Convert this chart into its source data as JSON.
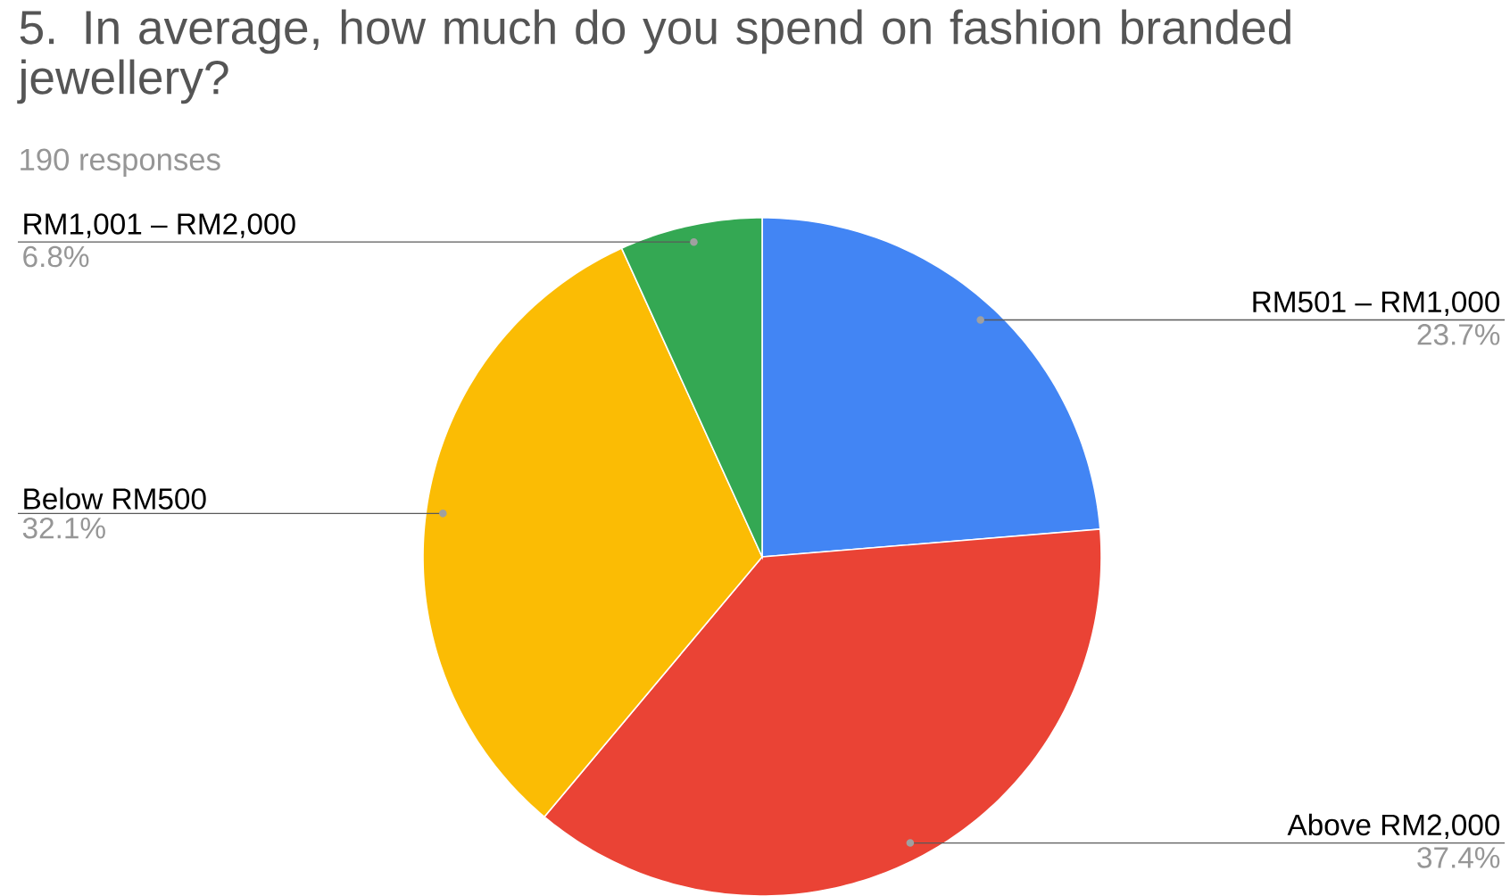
{
  "chart_data": {
    "type": "pie",
    "title": "5. In average, how much do you spend on fashion branded jewellery?",
    "subtitle": "190 responses",
    "categories": [
      "RM501 – RM1,000",
      "Above RM2,000",
      "Below RM500",
      "RM1,001 – RM2,000"
    ],
    "values": [
      23.7,
      37.4,
      32.1,
      6.8
    ],
    "value_labels": [
      "23.7%",
      "37.4%",
      "32.1%",
      "6.8%"
    ],
    "colors": [
      "#4285f4",
      "#ea4335",
      "#fbbc04",
      "#34a853"
    ]
  }
}
